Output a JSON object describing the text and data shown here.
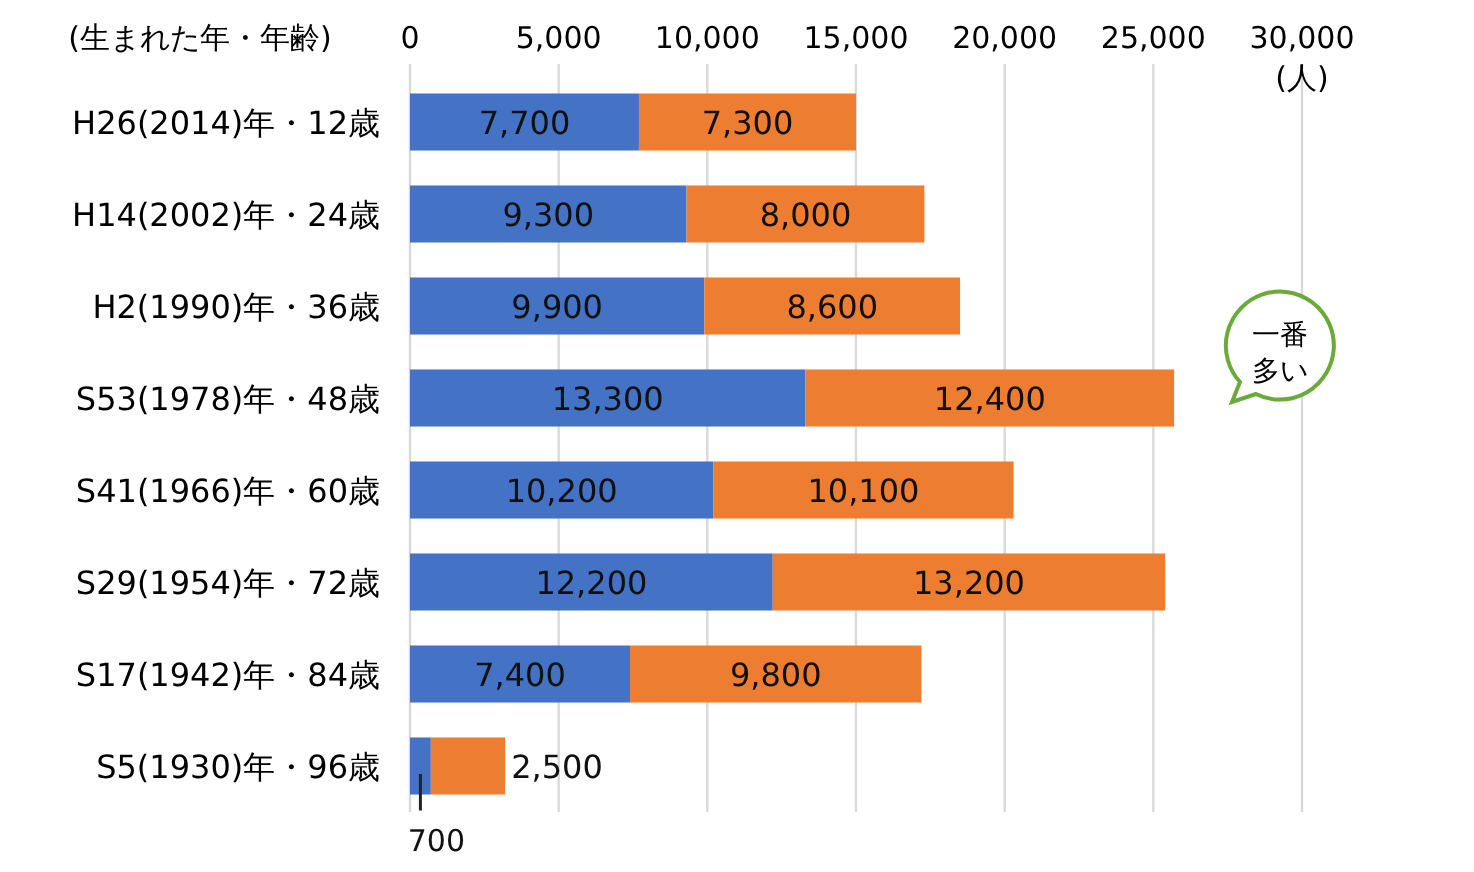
{
  "chart_data": {
    "type": "bar",
    "orientation": "horizontal",
    "stacked": true,
    "grid": "x",
    "ylabel": "(生まれた年・年齢)",
    "xlabel": "(人)",
    "categories": [
      "H26(2014)年・12歳",
      "H14(2002)年・24歳",
      "H2(1990)年・36歳",
      "S53(1978)年・48歳",
      "S41(1966)年・60歳",
      "S29(1954)年・72歳",
      "S17(1942)年・84歳",
      "S5(1930)年・96歳"
    ],
    "series": [
      {
        "color": "#4472c4",
        "values": [
          7700,
          9300,
          9900,
          13300,
          10200,
          12200,
          7400,
          700
        ],
        "value_labels": [
          "7,700",
          "9,300",
          "9,900",
          "13,300",
          "10,200",
          "12,200",
          "7,400",
          "700"
        ]
      },
      {
        "color": "#ed7d31",
        "values": [
          7300,
          8000,
          8600,
          12400,
          10100,
          13200,
          9800,
          2500
        ],
        "value_labels": [
          "7,300",
          "8,000",
          "8,600",
          "12,400",
          "10,100",
          "13,200",
          "9,800",
          "2,500"
        ]
      }
    ],
    "xlim": [
      0,
      30000
    ],
    "xticks": [
      0,
      {
        "value": 5000,
        "label": "5,000"
      },
      {
        "value": 10000,
        "label": "10,000"
      },
      {
        "value": 15000,
        "label": "15,000"
      },
      {
        "value": 20000,
        "label": "20,000"
      },
      {
        "value": 25000,
        "label": "25,000"
      },
      {
        "value": 30000,
        "label": "30,000"
      }
    ],
    "annotations": [
      "一番多い"
    ]
  }
}
